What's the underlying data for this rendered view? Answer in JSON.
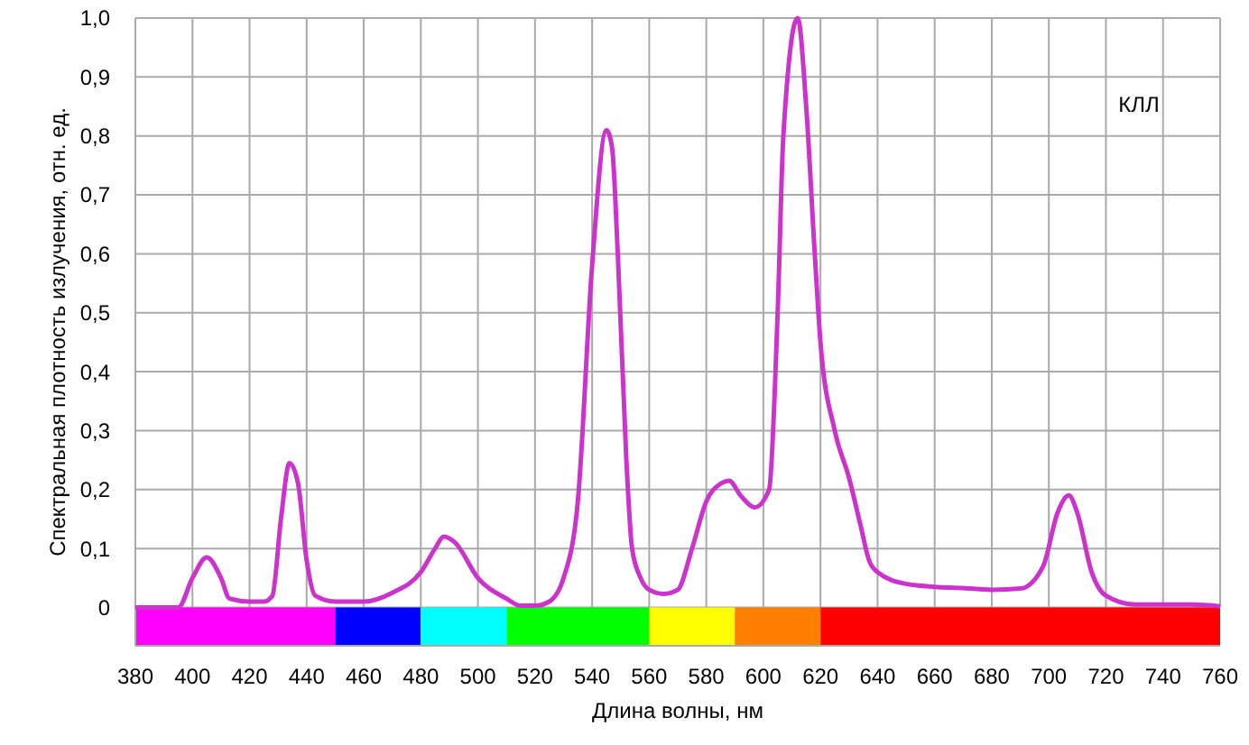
{
  "chart_data": {
    "type": "line",
    "xlabel": "Длина волны, нм",
    "ylabel": "Спектральная плотность излучения, отн. ед.",
    "annotations": [
      "КЛЛ"
    ],
    "xlim": [
      380,
      760
    ],
    "xticks": [
      380,
      400,
      420,
      440,
      460,
      480,
      500,
      520,
      540,
      560,
      580,
      600,
      620,
      640,
      660,
      680,
      700,
      720,
      740,
      760
    ],
    "ylim": [
      -0.065,
      1
    ],
    "yticks": [
      {
        "value": 0,
        "label": "0"
      },
      {
        "value": 0.1,
        "label": "0,1"
      },
      {
        "value": 0.2,
        "label": "0,2"
      },
      {
        "value": 0.3,
        "label": "0,3"
      },
      {
        "value": 0.4,
        "label": "0,4"
      },
      {
        "value": 0.5,
        "label": "0,5"
      },
      {
        "value": 0.6,
        "label": "0,6"
      },
      {
        "value": 0.7,
        "label": "0,7"
      },
      {
        "value": 0.8,
        "label": "0,8"
      },
      {
        "value": 0.9,
        "label": "0,9"
      },
      {
        "value": 1,
        "label": "1,0"
      }
    ],
    "grid": true,
    "marker": "none",
    "line_style": "solid",
    "bands": [
      {
        "axis": "x",
        "from": 380,
        "to": 450,
        "color": "#ff00ff"
      },
      {
        "axis": "x",
        "from": 450,
        "to": 480,
        "color": "#0000ff"
      },
      {
        "axis": "x",
        "from": 480,
        "to": 510,
        "color": "#00ffff"
      },
      {
        "axis": "x",
        "from": 510,
        "to": 560,
        "color": "#00ff00"
      },
      {
        "axis": "x",
        "from": 560,
        "to": 590,
        "color": "#ffff00"
      },
      {
        "axis": "x",
        "from": 590,
        "to": 620,
        "color": "#ff8000"
      },
      {
        "axis": "x",
        "from": 620,
        "to": 760,
        "color": "#ff0000"
      }
    ],
    "series": [
      {
        "color": "#cc33cc",
        "x": [
          380,
          395,
          400,
          405,
          410,
          413,
          420,
          425,
          428,
          431,
          434,
          437,
          440,
          443,
          450,
          460,
          470,
          480,
          485,
          488,
          492,
          500,
          510,
          515,
          520,
          525,
          530,
          535,
          540,
          545,
          547,
          549,
          552,
          554,
          557,
          560,
          565,
          570,
          575,
          580,
          585,
          588,
          592,
          597,
          602,
          605,
          607,
          612,
          615,
          618,
          620,
          625,
          630,
          634,
          637,
          640,
          650,
          660,
          670,
          680,
          690,
          698,
          703,
          707,
          710,
          715,
          720,
          730,
          740,
          750,
          760
        ],
        "values": [
          0,
          0,
          0.05,
          0.085,
          0.05,
          0.015,
          0.01,
          0.01,
          0.02,
          0.15,
          0.245,
          0.21,
          0.08,
          0.02,
          0.01,
          0.01,
          0.025,
          0.06,
          0.1,
          0.12,
          0.11,
          0.05,
          0.015,
          0.003,
          0.003,
          0.01,
          0.05,
          0.18,
          0.58,
          0.81,
          0.78,
          0.6,
          0.25,
          0.1,
          0.05,
          0.03,
          0.023,
          0.03,
          0.1,
          0.18,
          0.21,
          0.215,
          0.19,
          0.17,
          0.2,
          0.5,
          0.8,
          1,
          0.85,
          0.6,
          0.45,
          0.3,
          0.22,
          0.14,
          0.08,
          0.06,
          0.04,
          0.035,
          0.033,
          0.03,
          0.032,
          0.07,
          0.16,
          0.19,
          0.16,
          0.06,
          0.02,
          0.005,
          0.005,
          0.005,
          0.002
        ]
      }
    ]
  }
}
